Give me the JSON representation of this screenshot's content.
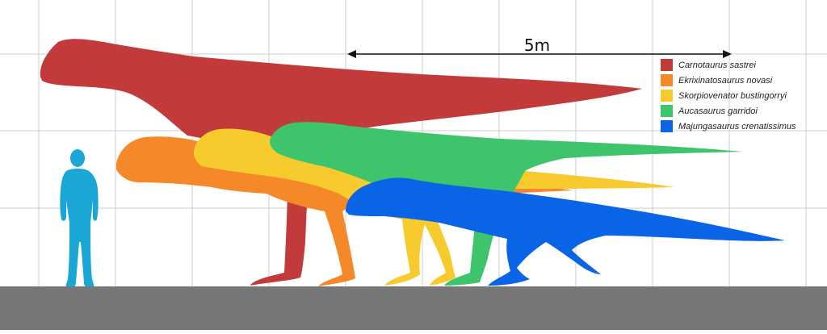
{
  "scale": {
    "label": "5m"
  },
  "colors": {
    "grid": "#cccccc",
    "ground": "#777777",
    "human": "#1aa7d6",
    "arrow": "#111111"
  },
  "legend": [
    {
      "label": "Carnotaurus sastrei",
      "color": "#c23a3a"
    },
    {
      "label": "Ekrixinatosaurus novasi",
      "color": "#f5892a"
    },
    {
      "label": "Skorpiovenator bustingorryi",
      "color": "#f7cb2d"
    },
    {
      "label": "Aucasaurus garridoi",
      "color": "#3ec46a"
    },
    {
      "label": "Majungasaurus crenatissimus",
      "color": "#0a64e6"
    }
  ]
}
